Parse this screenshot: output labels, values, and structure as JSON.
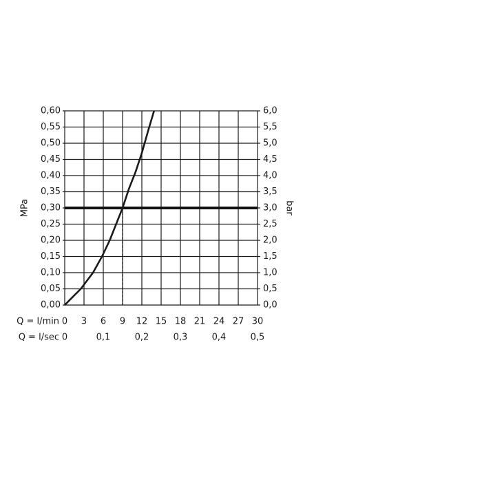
{
  "chart_data": {
    "type": "line",
    "y_label": "MPa",
    "y2_label": "bar",
    "x_label": "Q = l/min",
    "x2_label": "Q = l/sec",
    "xlim": [
      0,
      30
    ],
    "xticks": [
      0,
      3,
      6,
      9,
      12,
      15,
      18,
      21,
      24,
      27,
      30
    ],
    "x2lim": [
      0,
      0.5
    ],
    "x2ticks": [
      0,
      {
        "value": 0.1,
        "label": "0,1"
      },
      {
        "value": 0.2,
        "label": "0,2"
      },
      {
        "value": 0.3,
        "label": "0,3"
      },
      {
        "value": 0.4,
        "label": "0,4"
      },
      {
        "value": 0.5,
        "label": "0,5"
      }
    ],
    "ylim": [
      0,
      0.6
    ],
    "yticks": [
      {
        "value": 0,
        "label": "0,00"
      },
      {
        "value": 0.05,
        "label": "0,05"
      },
      {
        "value": 0.1,
        "label": "0,10"
      },
      {
        "value": 0.15,
        "label": "0,15"
      },
      {
        "value": 0.2,
        "label": "0,20"
      },
      {
        "value": 0.25,
        "label": "0,25"
      },
      {
        "value": 0.3,
        "label": "0,30"
      },
      {
        "value": 0.35,
        "label": "0,35"
      },
      {
        "value": 0.4,
        "label": "0,40"
      },
      {
        "value": 0.45,
        "label": "0,45"
      },
      {
        "value": 0.5,
        "label": "0,50"
      },
      {
        "value": 0.55,
        "label": "0,55"
      },
      {
        "value": 0.6,
        "label": "0,60"
      }
    ],
    "y2lim": [
      0,
      6
    ],
    "y2ticks": [
      {
        "value": 0,
        "label": "0,0"
      },
      {
        "value": 0.5,
        "label": "0,5"
      },
      {
        "value": 1,
        "label": "1,0"
      },
      {
        "value": 1.5,
        "label": "1,5"
      },
      {
        "value": 2,
        "label": "2,0"
      },
      {
        "value": 2.5,
        "label": "2,5"
      },
      {
        "value": 3,
        "label": "3,0"
      },
      {
        "value": 3.5,
        "label": "3,5"
      },
      {
        "value": 4,
        "label": "4,0"
      },
      {
        "value": 4.5,
        "label": "4,5"
      },
      {
        "value": 5,
        "label": "5,0"
      },
      {
        "value": 5.5,
        "label": "5,5"
      },
      {
        "value": 6,
        "label": "6,0"
      }
    ],
    "grid": true,
    "reference": {
      "y": 0.3,
      "x": 9
    },
    "series": [
      {
        "color": "#1a1a1a",
        "x": [
          0,
          1,
          2.5,
          4.4,
          5.8,
          7,
          8,
          9,
          10,
          11,
          12,
          13,
          13.9
        ],
        "values": [
          0,
          0.02,
          0.05,
          0.1,
          0.15,
          0.2,
          0.25,
          0.3,
          0.36,
          0.41,
          0.47,
          0.54,
          0.6
        ]
      }
    ]
  }
}
